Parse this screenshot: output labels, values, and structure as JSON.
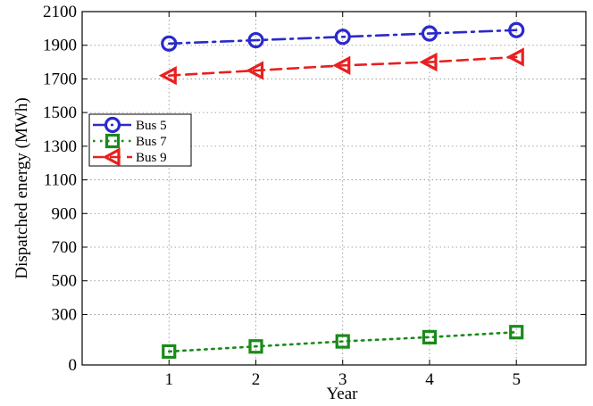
{
  "chart_data": {
    "type": "line",
    "title": "",
    "xlabel": "Year",
    "ylabel": "Dispatched energy (MWh)",
    "x": [
      1,
      2,
      3,
      4,
      5
    ],
    "xlim": [
      0,
      5.8
    ],
    "ylim": [
      0,
      2100
    ],
    "xticks": [
      1,
      2,
      3,
      4,
      5
    ],
    "yticks": [
      0,
      300,
      500,
      700,
      900,
      1100,
      1300,
      1500,
      1700,
      1900,
      2100
    ],
    "grid": true,
    "legend_position": "upper-left",
    "series": [
      {
        "name": "Bus 5",
        "values": [
          1910,
          1930,
          1950,
          1970,
          1990
        ],
        "color": "#2a2acc",
        "line_style": "dash-dot",
        "marker": "circle"
      },
      {
        "name": "Bus 7",
        "values": [
          80,
          110,
          140,
          165,
          195
        ],
        "color": "#1a8a1a",
        "line_style": "dotted",
        "marker": "square"
      },
      {
        "name": "Bus 9",
        "values": [
          1720,
          1750,
          1780,
          1800,
          1830
        ],
        "color": "#e82020",
        "line_style": "dashed",
        "marker": "triangle-left"
      }
    ]
  }
}
